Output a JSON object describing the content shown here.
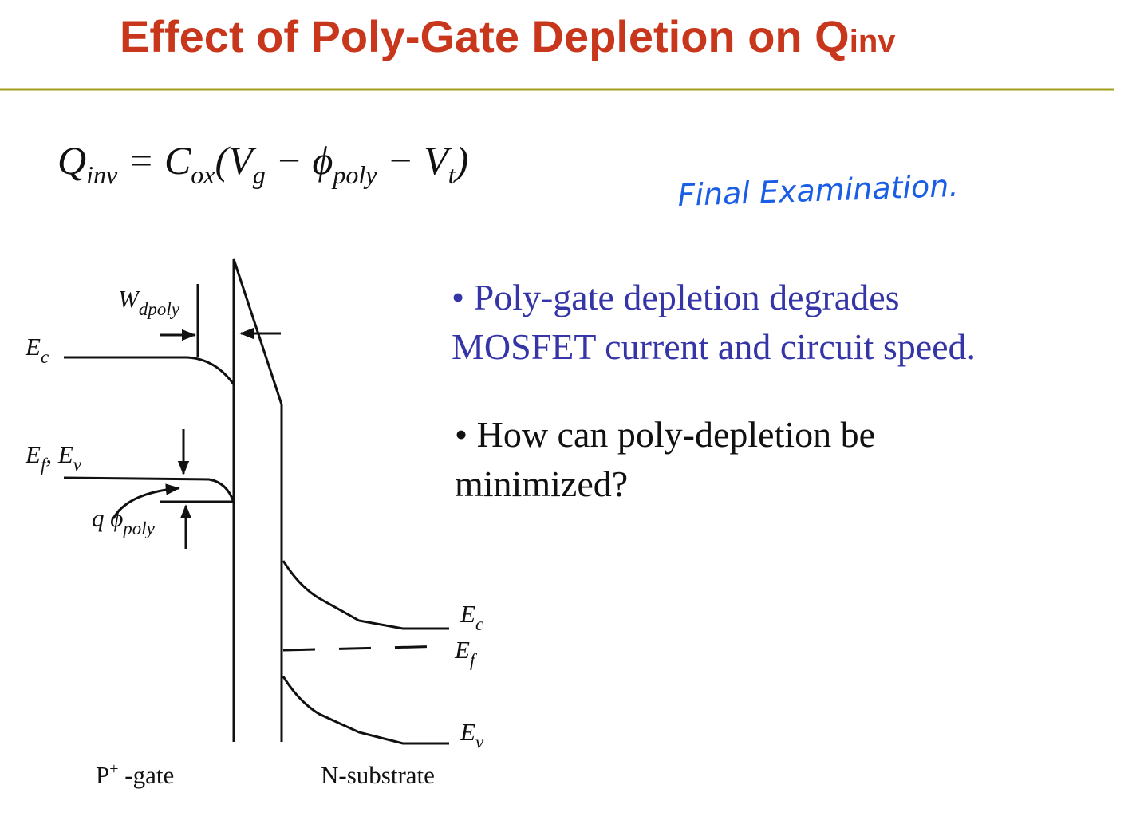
{
  "header": {
    "title": "Effect of Poly-Gate Depletion on Q",
    "title_sub": "inv"
  },
  "equation": [
    {
      "text": "Q",
      "sub": "inv"
    },
    {
      "text": " = C",
      "sub": "ox"
    },
    {
      "text": "(V",
      "sub": "g"
    },
    {
      "text": " − ϕ",
      "sub": "poly"
    },
    {
      "text": " − V",
      "sub": "t"
    },
    {
      "text": ")"
    }
  ],
  "note": "Final Examination.",
  "diagram": {
    "w_dpoly": {
      "text": "W",
      "sub": "dpoly"
    },
    "ec_left": {
      "text": "E",
      "sub": "c"
    },
    "ef_ev_left": {
      "text": "E",
      "sub": "f",
      "text2": ", E",
      "sub2": "v"
    },
    "q_phi": {
      "text": "q ϕ",
      "sub": "poly"
    },
    "ec_right": {
      "text": "E",
      "sub": "c"
    },
    "ef_right": {
      "text": "E",
      "sub": "f"
    },
    "ev_right": {
      "text": "E",
      "sub": "v"
    },
    "gate": {
      "text": "P",
      "sup": "+",
      "text2": " -gate"
    },
    "substrate": "N-substrate"
  },
  "bullets": [
    {
      "lines": [
        "• Poly-gate depletion degrades",
        "MOSFET current and circuit speed."
      ]
    },
    {
      "lines": [
        "• How can poly-depletion be",
        "minimized?"
      ]
    }
  ]
}
